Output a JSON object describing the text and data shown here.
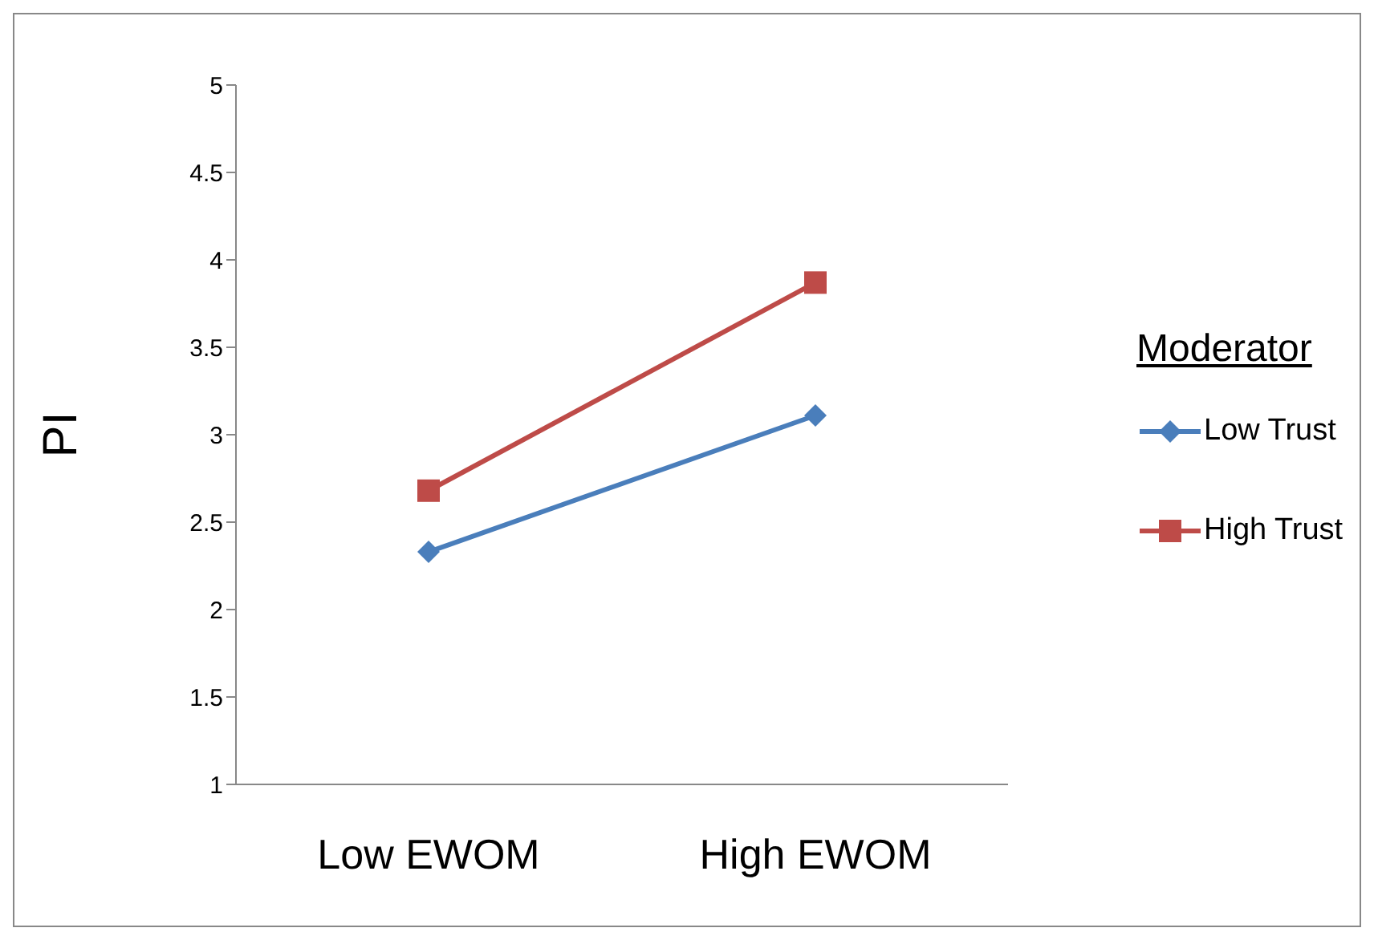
{
  "chart_data": {
    "type": "line",
    "ylabel": "PI",
    "legend_title": "Moderator",
    "categories": [
      "Low EWOM",
      "High EWOM"
    ],
    "series": [
      {
        "name": "Low Trust",
        "color": "#4a7ebb",
        "values": [
          2.33,
          3.11
        ],
        "marker": "diamond"
      },
      {
        "name": "High Trust",
        "color": "#be4b48",
        "values": [
          2.68,
          3.87
        ],
        "marker": "square"
      }
    ],
    "ylim": [
      1,
      5
    ],
    "yticks": [
      1,
      1.5,
      2,
      2.5,
      3,
      3.5,
      4,
      4.5,
      5
    ],
    "grid": false,
    "legend": "right"
  }
}
